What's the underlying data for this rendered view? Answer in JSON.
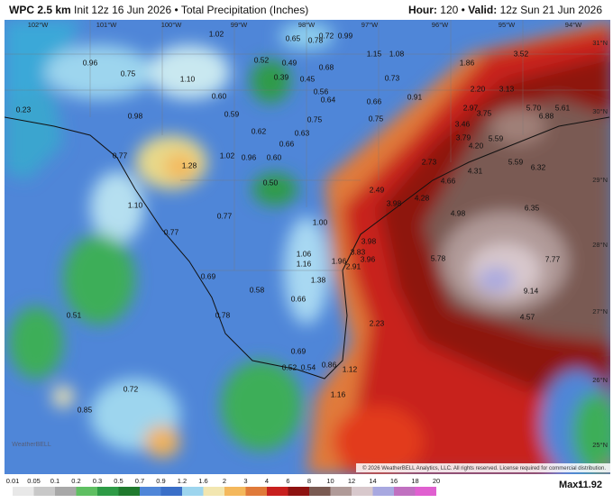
{
  "header": {
    "model": "WPC 2.5 km",
    "init": "Init 12z 16 Jun 2026",
    "sep": "•",
    "product": "Total Precipitation (Inches)",
    "hour_label": "Hour:",
    "hour": "120",
    "valid_label": "Valid:",
    "valid": "12z Sun 21 Jun 2026"
  },
  "longitudes": [
    "102°W",
    "101°W",
    "100°W",
    "99°W",
    "98°W",
    "97°W",
    "96°W",
    "95°W",
    "94°W"
  ],
  "latitudes": [
    "31°N",
    "30°N",
    "29°N",
    "28°N",
    "27°N",
    "26°N",
    "25°N"
  ],
  "map_values": [
    "1.02",
    "0.65",
    "0.78",
    "0.72",
    "0.99",
    "1.15",
    "1.08",
    "0.96",
    "0.75",
    "1.10",
    "0.52",
    "0.49",
    "0.68",
    "0.39",
    "0.45",
    "0.73",
    "0.56",
    "0.64",
    "0.91",
    "0.60",
    "0.66",
    "0.59",
    "0.75",
    "0.75",
    "0.98",
    "0.23",
    "0.62",
    "0.63",
    "0.66",
    "0.77",
    "1.28",
    "1.02",
    "0.96",
    "0.60",
    "0.50",
    "1.10",
    "0.77",
    "0.77",
    "1.00",
    "1.06",
    "1.16",
    "0.69",
    "1.38",
    "0.58",
    "0.66",
    "0.51",
    "0.78",
    "0.69",
    "0.52",
    "0.54",
    "0.86",
    "1.12",
    "0.72",
    "1.16",
    "0.85",
    "1.86",
    "3.52",
    "2.20",
    "3.13",
    "2.97",
    "3.75",
    "5.70",
    "5.61",
    "6.88",
    "3.46",
    "3.79",
    "5.59",
    "4.20",
    "2.73",
    "4.31",
    "5.59",
    "6.32",
    "4.66",
    "2.49",
    "4.28",
    "3.98",
    "6.35",
    "4.98",
    "3.98",
    "3.83",
    "1.96",
    "3.96",
    "2.91",
    "5.78",
    "7.77",
    "9.14",
    "4.57",
    "2.23"
  ],
  "copyright": "© 2026 WeatherBELL Analytics, LLC. All rights reserved. License required for commercial distribution.",
  "watermark": "WeatherBELL",
  "colorbar": [
    "0.01",
    "0.05",
    "0.1",
    "0.2",
    "0.3",
    "0.5",
    "0.7",
    "0.9",
    "1.2",
    "1.6",
    "2",
    "3",
    "4",
    "6",
    "8",
    "10",
    "12",
    "14",
    "16",
    "18",
    "20"
  ],
  "max_label": "Max:",
  "max_value": "11.92"
}
